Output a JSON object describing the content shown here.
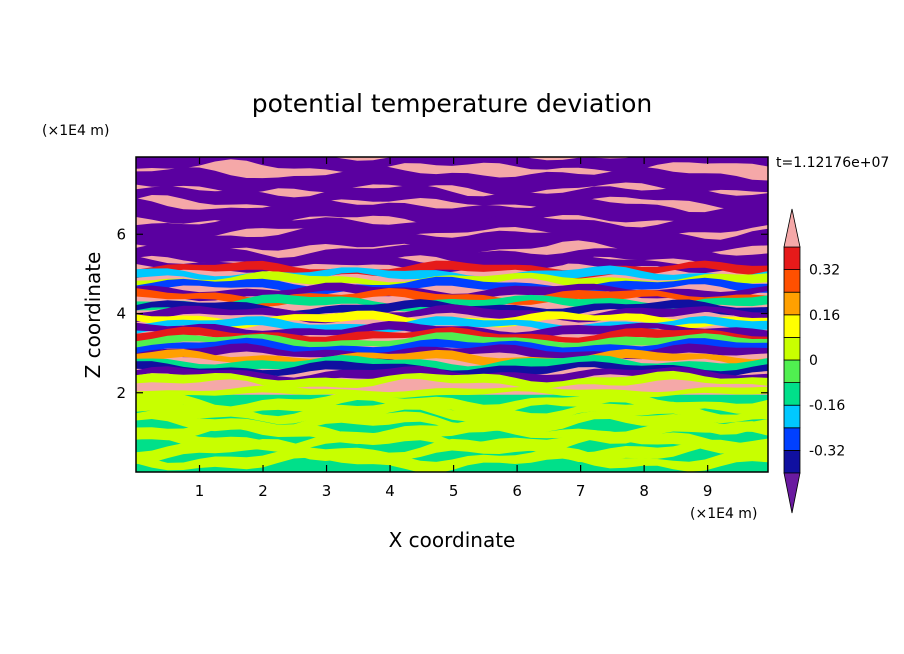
{
  "chart_data": {
    "type": "heatmap",
    "title": "potential temperature deviation",
    "time_label": "t=1.12176e+07",
    "xlabel": "X coordinate",
    "ylabel": "Z coordinate",
    "x_unit": "(×1E4 m)",
    "z_unit": "(×1E4 m)",
    "xlim": [
      0,
      9.95
    ],
    "ylim": [
      0,
      7.95
    ],
    "x_ticks": [
      1,
      2,
      3,
      4,
      5,
      6,
      7,
      8,
      9
    ],
    "y_ticks": [
      2,
      4,
      6
    ],
    "colorbar": {
      "tick_labels": [
        "0.32",
        "0.16",
        "0",
        "-0.16",
        "-0.32"
      ],
      "tick_values": [
        0.32,
        0.16,
        0,
        -0.16,
        -0.32
      ],
      "levels": [
        -0.4,
        -0.32,
        -0.24,
        -0.16,
        -0.08,
        0,
        0.08,
        0.16,
        0.24,
        0.32,
        0.4
      ],
      "colors": [
        "#5a00a0",
        "#1010a0",
        "#0040ff",
        "#00c8ff",
        "#00e08a",
        "#50f050",
        "#c8ff00",
        "#ffff00",
        "#ffa000",
        "#ff5000",
        "#e61a1a",
        "#f5a8a8"
      ],
      "under_color": "#6a1aa0",
      "over_color": "#f5a8a8"
    }
  }
}
